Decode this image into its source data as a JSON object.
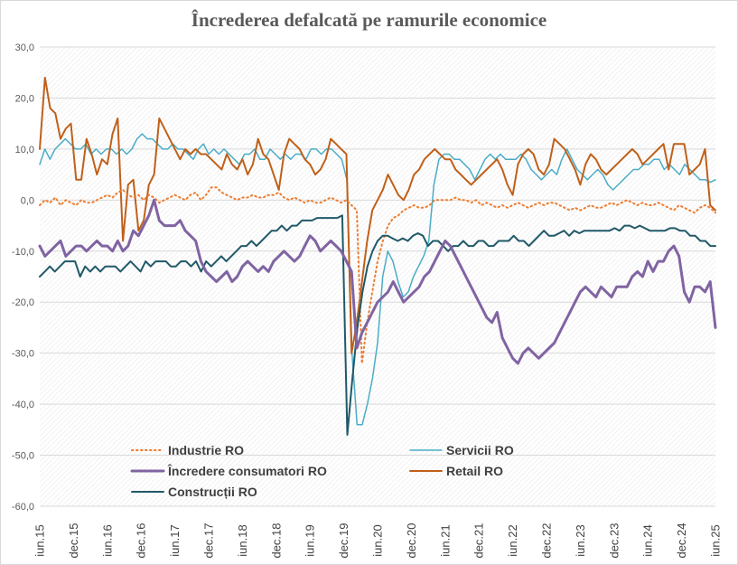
{
  "chart_data": {
    "type": "line",
    "title": "Încrederea defalcată  pe ramurile economice",
    "ylim": [
      -60,
      30
    ],
    "y_ticks": [
      "30,0",
      "20,0",
      "10,0",
      "0,0",
      "-10,0",
      "-20,0",
      "-30,0",
      "-40,0",
      "-50,0",
      "-60,0"
    ],
    "x_tick_labels": [
      "iun.15",
      "dec.15",
      "iun.16",
      "dec.16",
      "iun.17",
      "dec.17",
      "iun.18",
      "dec.18",
      "iun.19",
      "dec.19",
      "iun.20",
      "dec.20",
      "iun.21",
      "dec.21",
      "iun.22",
      "dec.22",
      "iun.23",
      "dec.23",
      "iun.24",
      "dec.24",
      "iun.25"
    ],
    "x_start": "iun.15",
    "x_end": "iun.25",
    "legend_position": "bottom-left inside plot",
    "grid": "horizontal gridlines, hatched plot background",
    "series": [
      {
        "name": "Industrie RO",
        "color": "#ed7d31",
        "style": "dotted",
        "width": 2,
        "values": [
          -1,
          0,
          -0.5,
          0.5,
          -1,
          0,
          -0.5,
          -1,
          0,
          -0.5,
          -0.5,
          0,
          0.5,
          1,
          0.5,
          1.5,
          2,
          1,
          0.5,
          1,
          0,
          1,
          0.5,
          -0.5,
          0,
          0.5,
          1,
          0.5,
          0,
          1,
          1.5,
          0,
          1,
          2.5,
          2.5,
          1.5,
          1,
          0.5,
          0,
          0.5,
          0.5,
          1,
          0.5,
          0.5,
          1,
          1,
          1.5,
          0.5,
          0,
          0.5,
          0,
          -0.5,
          0,
          -0.5,
          -0.5,
          0,
          0.5,
          0,
          -0.5,
          0,
          -1,
          -2,
          -32,
          -24,
          -18,
          -12,
          -8,
          -5,
          -3.5,
          -3,
          -2,
          -1.5,
          -1,
          -1.5,
          -1.5,
          -1,
          0,
          0,
          0,
          0,
          0.5,
          0,
          0,
          -0.5,
          0,
          -1,
          -0.5,
          -1,
          -1.5,
          -1,
          -1.5,
          -1,
          -0.5,
          -1,
          -1.5,
          -1,
          -0.5,
          -1,
          -0.5,
          -0.5,
          -1,
          -1.5,
          -2,
          -1.5,
          -2,
          -1.5,
          -1,
          -1.5,
          -1.5,
          -1,
          -0.5,
          -1,
          -0.5,
          0,
          -0.5,
          -1,
          -0.5,
          -1,
          -1,
          -0.5,
          -1,
          -1.5,
          -2,
          -1,
          -1.5,
          -2,
          -2.5,
          -1.5,
          -1,
          -1.5,
          -2.5
        ]
      },
      {
        "name": "Servicii RO",
        "color": "#4bacc6",
        "style": "solid",
        "width": 1.5,
        "values": [
          7,
          10,
          8,
          10,
          11,
          12,
          11,
          10,
          10,
          11,
          9,
          10,
          9,
          10,
          10,
          9,
          10,
          9,
          10,
          12,
          13,
          12,
          12,
          11,
          10,
          10,
          11,
          10,
          10,
          9,
          8,
          10,
          11,
          9,
          10,
          9,
          10,
          9,
          8,
          7,
          9,
          9,
          10,
          8,
          8,
          10,
          9,
          8,
          9,
          8,
          9,
          9,
          8,
          10,
          10,
          9,
          10,
          10,
          9,
          8,
          4,
          -30,
          -44,
          -44,
          -40,
          -35,
          -28,
          -15,
          -10,
          -12,
          -16,
          -19,
          -18,
          -15,
          -13,
          -11,
          -8,
          3,
          8,
          9,
          9,
          8,
          8,
          7,
          6,
          4,
          6,
          8,
          9,
          8,
          9,
          8,
          8,
          8,
          9,
          8,
          6,
          5,
          4,
          5,
          6,
          5,
          8,
          10,
          8,
          6,
          5,
          4,
          5,
          6,
          5,
          3,
          2,
          3,
          4,
          5,
          6,
          6,
          7,
          7,
          8,
          8,
          6,
          7,
          6,
          5,
          7,
          6,
          5,
          4,
          4,
          3.5,
          4
        ]
      },
      {
        "name": "Încredere consumatori RO",
        "color": "#8064a2",
        "style": "solid",
        "width": 3,
        "values": [
          -9,
          -11,
          -10,
          -9,
          -8,
          -11,
          -10,
          -9,
          -9,
          -10,
          -9,
          -8,
          -9,
          -9,
          -10,
          -8,
          -10,
          -9,
          -6,
          -7,
          -5,
          -3,
          0,
          -4,
          -5,
          -5,
          -5,
          -4,
          -6,
          -7,
          -8,
          -12,
          -14,
          -15,
          -16,
          -15,
          -14,
          -16,
          -15,
          -13,
          -12,
          -13,
          -14,
          -13,
          -14,
          -12,
          -11,
          -10,
          -11,
          -12,
          -11,
          -9,
          -7,
          -8,
          -10,
          -9,
          -8,
          -9,
          -10,
          -12,
          -14,
          -29,
          -26,
          -24,
          -22,
          -20,
          -19,
          -18,
          -16,
          -18,
          -20,
          -19,
          -18,
          -17,
          -15,
          -14,
          -12,
          -10,
          -8,
          -9,
          -11,
          -13,
          -15,
          -17,
          -19,
          -21,
          -23,
          -24,
          -22,
          -27,
          -29,
          -31,
          -32,
          -30,
          -29,
          -30,
          -31,
          -30,
          -29,
          -28,
          -26,
          -24,
          -22,
          -20,
          -18,
          -17,
          -18,
          -19,
          -17,
          -18,
          -19,
          -17,
          -17,
          -17,
          -15,
          -14,
          -15,
          -12,
          -14,
          -12,
          -12,
          -10,
          -9,
          -11,
          -18,
          -20,
          -17,
          -17,
          -18,
          -16,
          -25
        ]
      },
      {
        "name": "Retail RO",
        "color": "#c0601a",
        "style": "solid",
        "width": 2,
        "values": [
          10,
          24,
          18,
          17,
          12,
          14,
          15,
          4,
          4,
          12,
          9,
          5,
          8,
          7,
          13,
          16,
          -8,
          3,
          4,
          -6,
          -4,
          3,
          5,
          16,
          14,
          12,
          10,
          8,
          10,
          9,
          10,
          9,
          9,
          8,
          7,
          6,
          9,
          7,
          6,
          8,
          5,
          7,
          12,
          9,
          8,
          5,
          2,
          9,
          12,
          11,
          10,
          8,
          7,
          5,
          6,
          8,
          12,
          11,
          10,
          9,
          -30,
          -24,
          -16,
          -8,
          -2,
          0,
          2,
          5,
          3,
          1,
          0,
          2,
          5,
          6,
          8,
          9,
          10,
          9,
          8,
          8,
          6,
          5,
          4,
          3,
          4,
          5,
          6,
          7,
          8,
          6,
          3,
          1,
          7,
          9,
          10,
          9,
          6,
          5,
          7,
          12,
          11,
          10,
          8,
          6,
          3,
          7,
          9,
          8,
          6,
          5,
          6,
          7,
          8,
          9,
          10,
          9,
          7,
          8,
          9,
          10,
          11,
          6,
          11,
          11,
          11,
          5,
          6,
          7,
          10,
          -1,
          -2
        ]
      },
      {
        "name": "Construcții RO",
        "color": "#215968",
        "style": "solid",
        "width": 2,
        "values": [
          -15,
          -14,
          -13,
          -14,
          -13,
          -12,
          -12,
          -12,
          -15,
          -13,
          -14,
          -13,
          -14,
          -13,
          -13,
          -13,
          -14,
          -13,
          -12,
          -13,
          -14,
          -12,
          -13,
          -12,
          -12,
          -12,
          -13,
          -13,
          -12,
          -12,
          -13,
          -12,
          -14,
          -12,
          -13,
          -12,
          -11,
          -12,
          -11,
          -10,
          -9,
          -9,
          -8,
          -9,
          -8,
          -7,
          -6,
          -6,
          -5,
          -6,
          -5,
          -5,
          -4,
          -4,
          -4,
          -3.5,
          -3.5,
          -3.5,
          -3.5,
          -3.5,
          -3,
          -46,
          -35,
          -25,
          -18,
          -13,
          -10,
          -8,
          -7,
          -7,
          -7.5,
          -8,
          -7.5,
          -8,
          -7,
          -6.5,
          -7,
          -9,
          -8,
          -8,
          -9,
          -10,
          -9,
          -9,
          -8,
          -9,
          -9,
          -8,
          -8,
          -9,
          -9,
          -8,
          -8,
          -8,
          -7,
          -8,
          -8,
          -9,
          -8,
          -7,
          -6,
          -7,
          -7,
          -6.5,
          -6,
          -7,
          -6,
          -6.5,
          -6,
          -6,
          -6,
          -6,
          -6,
          -6,
          -5.5,
          -6,
          -5,
          -5,
          -5.5,
          -5,
          -5.5,
          -6,
          -6,
          -6,
          -6,
          -5.5,
          -5.5,
          -6,
          -6,
          -7,
          -7,
          -8,
          -8,
          -9,
          -9
        ]
      }
    ]
  }
}
